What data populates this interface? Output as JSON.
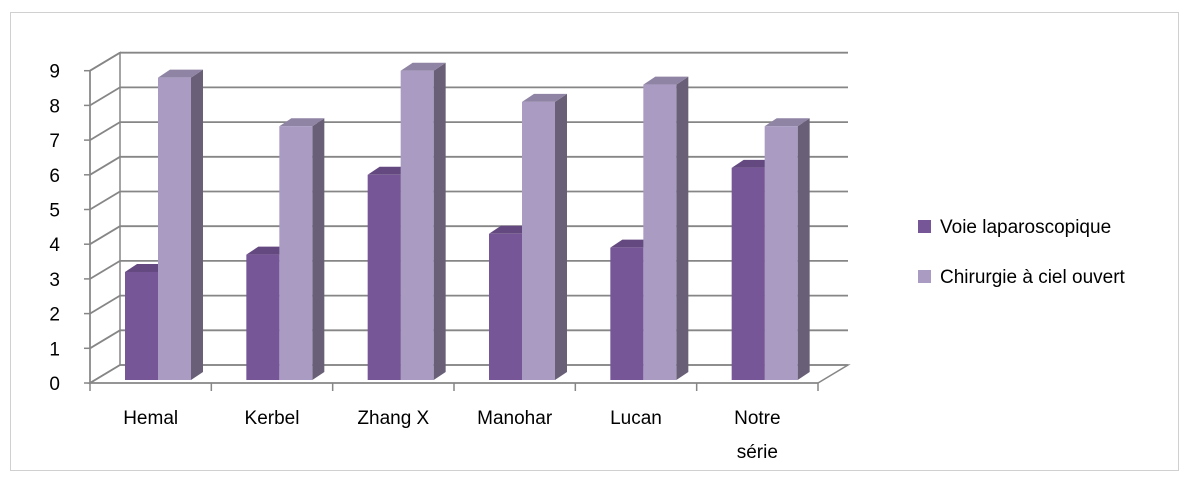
{
  "chart_data": {
    "type": "bar",
    "style": "3d-clustered-column",
    "categories": [
      "Hemal",
      "Kerbel",
      "Zhang X",
      "Manohar",
      "Lucan",
      "Notre série"
    ],
    "series": [
      {
        "name": "Voie laparoscopique",
        "color": "#765697",
        "values": [
          3.2,
          3.7,
          6.0,
          4.3,
          3.9,
          6.2
        ]
      },
      {
        "name": "Chirurgie à ciel ouvert",
        "color": "#A99BC2",
        "values": [
          8.8,
          7.4,
          9.0,
          8.1,
          8.6,
          7.4
        ]
      }
    ],
    "yticks": [
      "0",
      "1",
      "2",
      "3",
      "4",
      "5",
      "6",
      "7",
      "8",
      "9"
    ],
    "ylim": [
      0,
      9
    ],
    "grid": true,
    "legend_position": "right",
    "title": "",
    "xlabel": "",
    "ylabel": ""
  }
}
